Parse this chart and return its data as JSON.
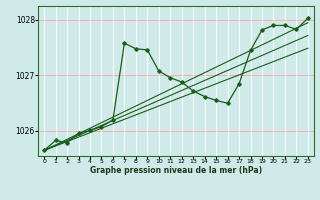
{
  "title": "Graphe pression niveau de la mer (hPa)",
  "xlim": [
    -0.5,
    23.5
  ],
  "ylim": [
    1025.55,
    1028.25
  ],
  "yticks": [
    1026,
    1027,
    1028
  ],
  "xticks": [
    0,
    1,
    2,
    3,
    4,
    5,
    6,
    7,
    8,
    9,
    10,
    11,
    12,
    13,
    14,
    15,
    16,
    17,
    18,
    19,
    20,
    21,
    22,
    23
  ],
  "bg_color": "#d0eaea",
  "vgrid_color": "#ffffff",
  "hgrid_color": "#ffaaaa",
  "line_color": "#1a5c1a",
  "reg_lines": [
    [
      1025.65,
      1025.73,
      1025.81,
      1025.89,
      1025.97,
      1026.05,
      1026.13,
      1026.21,
      1026.29,
      1026.37,
      1026.45,
      1026.53,
      1026.61,
      1026.69,
      1026.77,
      1026.85,
      1026.93,
      1027.01,
      1027.09,
      1027.17,
      1027.25,
      1027.33,
      1027.41,
      1027.49
    ],
    [
      1025.65,
      1025.74,
      1025.83,
      1025.92,
      1026.01,
      1026.1,
      1026.19,
      1026.28,
      1026.37,
      1026.46,
      1026.55,
      1026.64,
      1026.73,
      1026.82,
      1026.91,
      1027.0,
      1027.09,
      1027.18,
      1027.27,
      1027.36,
      1027.45,
      1027.54,
      1027.63,
      1027.72
    ],
    [
      1025.65,
      1025.75,
      1025.85,
      1025.95,
      1026.05,
      1026.15,
      1026.25,
      1026.35,
      1026.45,
      1026.55,
      1026.65,
      1026.75,
      1026.85,
      1026.95,
      1027.05,
      1027.15,
      1027.25,
      1027.35,
      1027.45,
      1027.55,
      1027.65,
      1027.75,
      1027.85,
      1027.95
    ]
  ],
  "main_line": {
    "x": [
      0,
      1,
      2,
      3,
      4,
      5,
      6,
      7,
      8,
      9,
      10,
      11,
      12,
      13,
      14,
      15,
      16,
      17,
      18,
      19,
      20,
      21,
      22,
      23
    ],
    "y": [
      1025.65,
      1025.83,
      1025.79,
      1025.96,
      1026.01,
      1026.08,
      1026.2,
      1027.58,
      1027.48,
      1027.46,
      1027.08,
      1026.96,
      1026.88,
      1026.72,
      1026.62,
      1026.55,
      1026.5,
      1026.85,
      1027.45,
      1027.82,
      1027.9,
      1027.9,
      1027.83,
      1028.03
    ]
  }
}
